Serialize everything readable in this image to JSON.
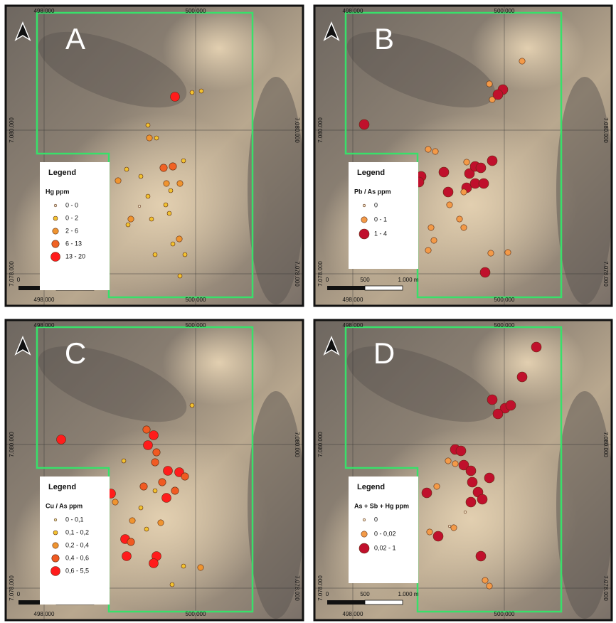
{
  "grid_labels": {
    "x_left": "498.000",
    "x_right": "500.000",
    "y_top": "7.080.000",
    "y_bottom": "7.078.000"
  },
  "scale_bar": {
    "labels": [
      "0",
      "500",
      "1.000 m"
    ]
  },
  "legend_title": "Legend",
  "panels": [
    {
      "letter": "A",
      "field": "Hg ppm",
      "items": [
        {
          "label": "0 - 0",
          "color": "#f3e8cc"
        },
        {
          "label": "0 - 2",
          "color": "#f2c230"
        },
        {
          "label": "2 - 6",
          "color": "#ef9430"
        },
        {
          "label": "6 - 13",
          "color": "#f06224"
        },
        {
          "label": "13 - 20",
          "color": "#ff1c1c"
        }
      ]
    },
    {
      "letter": "B",
      "field": "Pb / As ppm",
      "items": [
        {
          "label": "0",
          "color": "#f1e2c4"
        },
        {
          "label": "0 - 1",
          "color": "#f39a48"
        },
        {
          "label": "1 - 4",
          "color": "#c0102c"
        }
      ]
    },
    {
      "letter": "C",
      "field": "Cu / As ppm",
      "items": [
        {
          "label": "0 - 0,1",
          "color": "#e9e2a2"
        },
        {
          "label": "0,1 - 0,2",
          "color": "#f2c230"
        },
        {
          "label": "0,2 - 0,4",
          "color": "#ef9430"
        },
        {
          "label": "0,4 - 0,6",
          "color": "#f05a22"
        },
        {
          "label": "0,6 - 5,5",
          "color": "#ff1c1c"
        }
      ]
    },
    {
      "letter": "D",
      "field": "As + Sb + Hg ppm",
      "items": [
        {
          "label": "0",
          "color": "#f1e2c4"
        },
        {
          "label": "0 - 0,02",
          "color": "#f39a48"
        },
        {
          "label": "0,02 - 1",
          "color": "#c0102c"
        }
      ]
    }
  ]
}
